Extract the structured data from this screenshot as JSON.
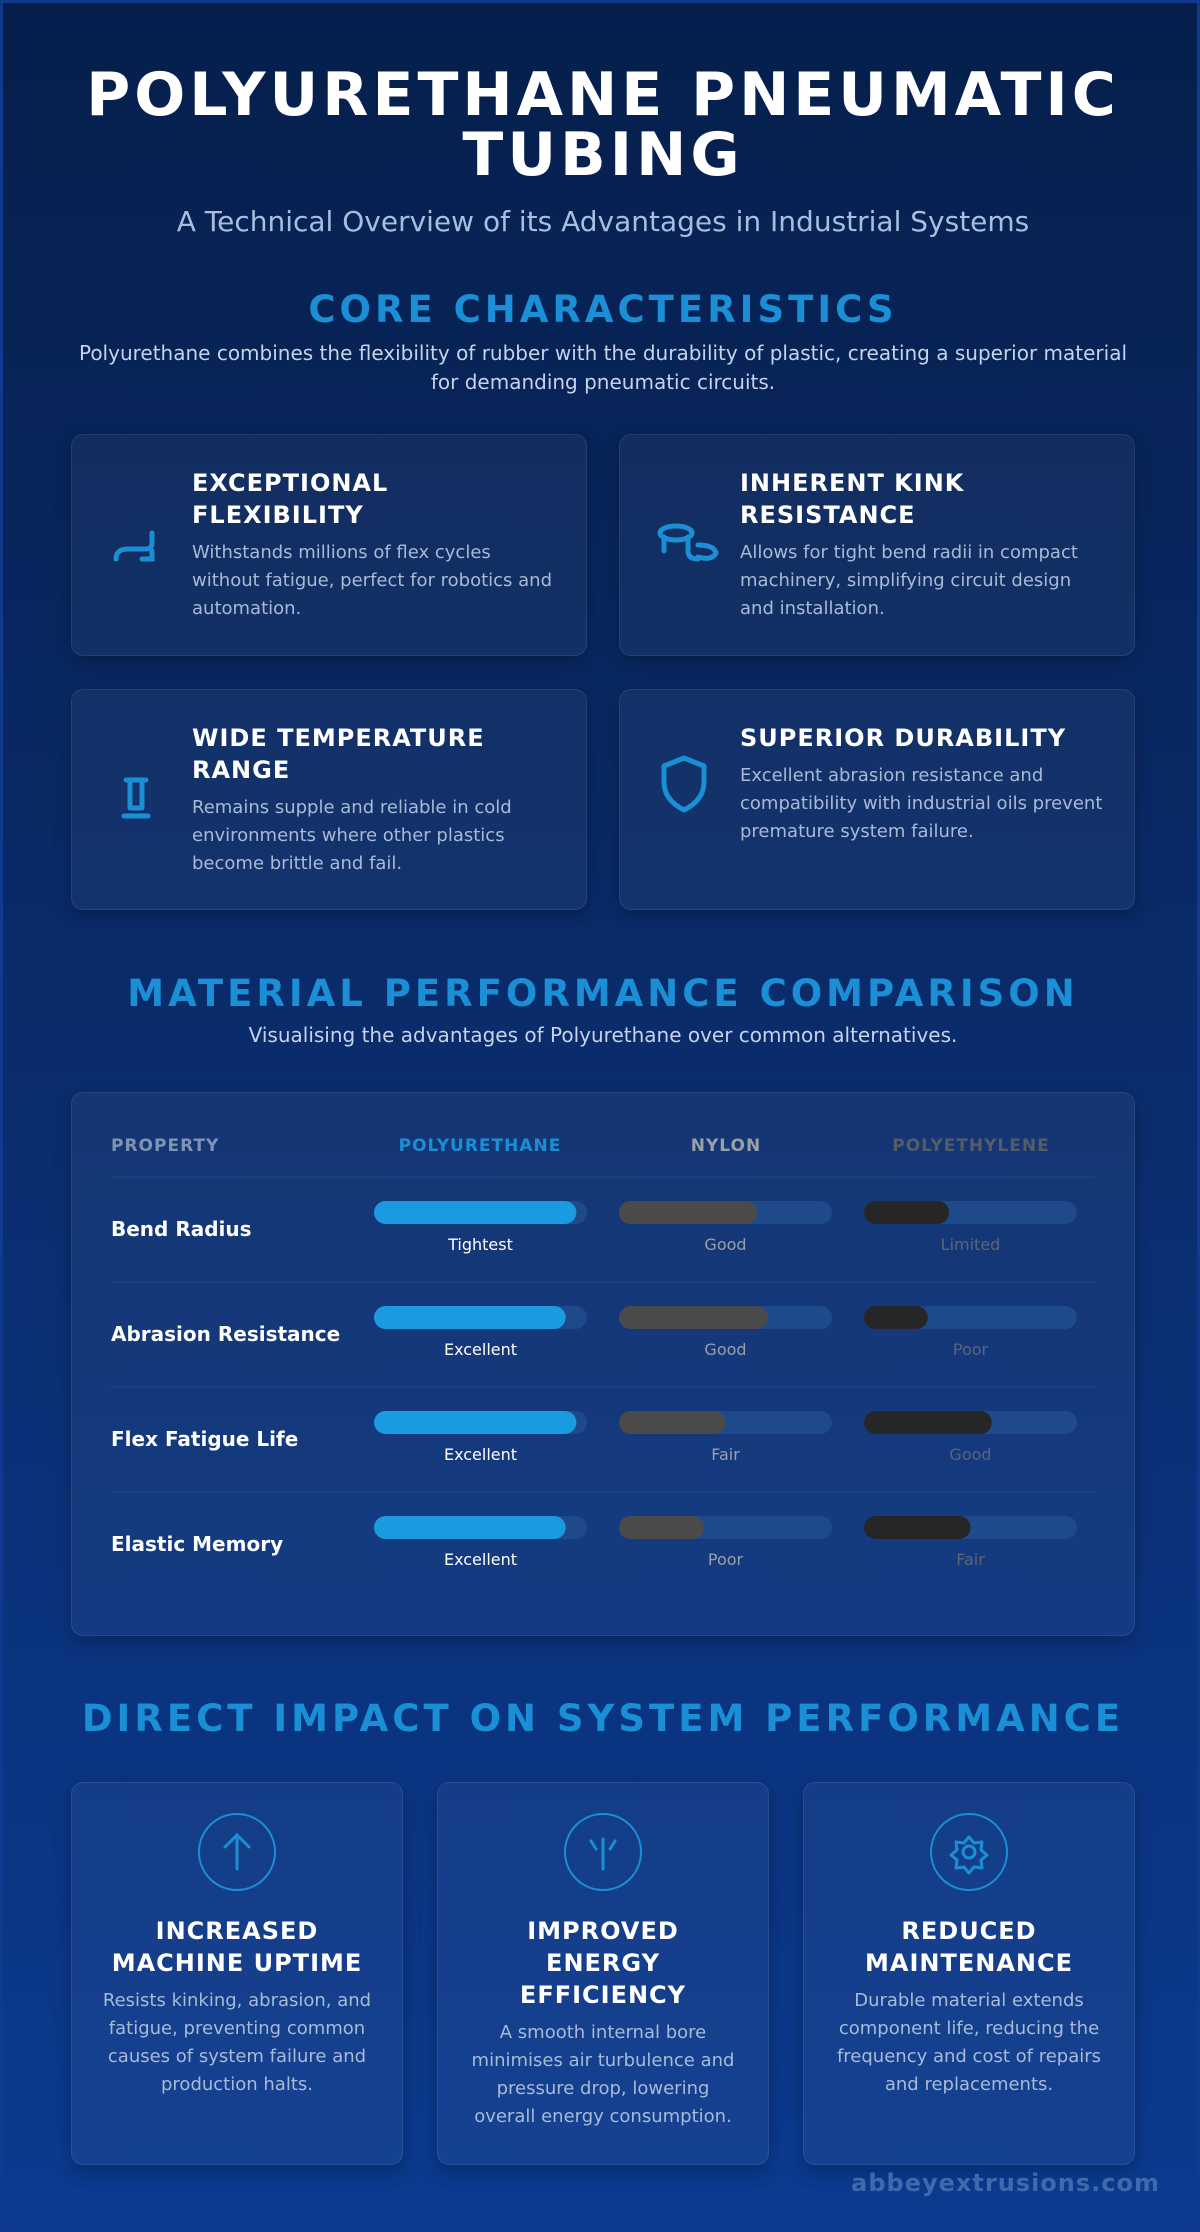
{
  "header": {
    "title": "POLYURETHANE PNEUMATIC TUBING",
    "subtitle": "A Technical Overview of its Advantages in Industrial Systems"
  },
  "core": {
    "heading": "CORE CHARACTERISTICS",
    "intro": "Polyurethane combines the flexibility of rubber with the durability of plastic, creating a superior material for demanding pneumatic circuits.",
    "cards": [
      {
        "title": "EXCEPTIONAL FLEXIBILITY",
        "text": "Withstands millions of flex cycles without fatigue, perfect for robotics and automation."
      },
      {
        "title": "INHERENT KINK RESISTANCE",
        "text": "Allows for tight bend radii in compact machinery, simplifying circuit design and installation."
      },
      {
        "title": "WIDE TEMPERATURE RANGE",
        "text": "Remains supple and reliable in cold environments where other plastics become brittle and fail."
      },
      {
        "title": "SUPERIOR DURABILITY",
        "text": "Excellent abrasion resistance and compatibility with industrial oils prevent premature system failure."
      }
    ]
  },
  "comparison": {
    "heading": "MATERIAL PERFORMANCE COMPARISON",
    "subtitle": "Visualising the advantages of Polyurethane over common alternatives.",
    "columns": [
      "PROPERTY",
      "POLYURETHANE",
      "NYLON",
      "POLYETHYLENE"
    ],
    "colors": [
      "#1a9ae0",
      "#4a4a4a",
      "#262626"
    ],
    "xlim": [
      0,
      100
    ],
    "rows": [
      {
        "property": "Bend Radius",
        "values": [
          95,
          65,
          40
        ],
        "labels": [
          "Tightest",
          "Good",
          "Limited"
        ]
      },
      {
        "property": "Abrasion Resistance",
        "values": [
          90,
          70,
          30
        ],
        "labels": [
          "Excellent",
          "Good",
          "Poor"
        ]
      },
      {
        "property": "Flex Fatigue Life",
        "values": [
          95,
          50,
          60
        ],
        "labels": [
          "Excellent",
          "Fair",
          "Good"
        ]
      },
      {
        "property": "Elastic Memory",
        "values": [
          90,
          40,
          50
        ],
        "labels": [
          "Excellent",
          "Poor",
          "Fair"
        ]
      }
    ]
  },
  "impact": {
    "heading": "DIRECT IMPACT ON SYSTEM PERFORMANCE",
    "cards": [
      {
        "title": "INCREASED MACHINE UPTIME",
        "text": "Resists kinking, abrasion, and fatigue, preventing common causes of system failure and production halts."
      },
      {
        "title": "IMPROVED ENERGY EFFICIENCY",
        "text": "A smooth internal bore minimises air turbulence and pressure drop, lowering overall energy consumption."
      },
      {
        "title": "REDUCED MAINTENANCE",
        "text": "Durable material extends component life, reducing the frequency and cost of repairs and replacements."
      }
    ]
  },
  "footer": {
    "site": "abbeyextrusions.com"
  }
}
